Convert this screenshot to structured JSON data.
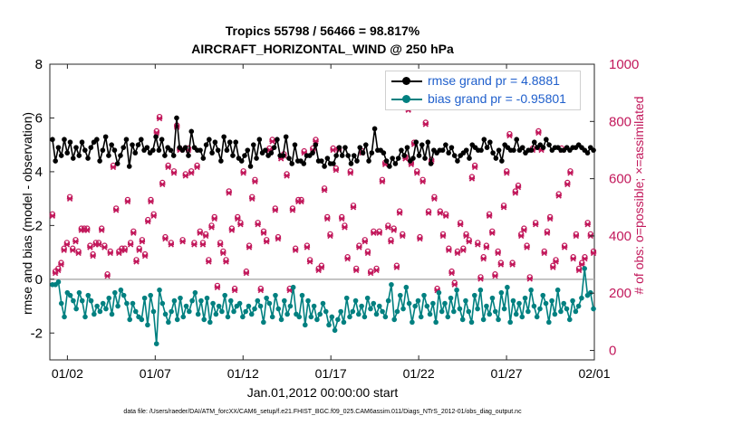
{
  "chart_data": {
    "type": "line",
    "title_line1": "Tropics 55798 / 56466 = 98.817%",
    "title_line2": "AIRCRAFT_HORIZONTAL_WIND @ 250 hPa",
    "xlabel": "Jan.01,2012 00:00:00 start",
    "ylabel_left": "rmse and bias (model - observation)",
    "ylabel_right": "# of obs: o=possible; ×=assimilated",
    "footer": "data file: /Users/raeder/DAI/ATM_forcXX/CAM6_setup/f.e21.FHIST_BGC.f09_025.CAM6assim.011/Diags_NTrS_2012-01/obs_diag_output.nc",
    "x_ticks": [
      "01/02",
      "01/07",
      "01/12",
      "01/17",
      "01/22",
      "01/27",
      "02/01"
    ],
    "x_tick_days": [
      1,
      6,
      11,
      16,
      21,
      26,
      31
    ],
    "xlim_days": [
      0,
      31
    ],
    "y_left_lim": [
      -3,
      8
    ],
    "y_left_ticks": [
      "-2",
      "0",
      "2",
      "4",
      "6",
      "8"
    ],
    "y_right_lim": [
      -33,
      1000
    ],
    "y_right_ticks": [
      "0",
      "200",
      "400",
      "600",
      "800",
      "1000"
    ],
    "legend_position": "top-right",
    "colors": {
      "rmse": "#000000",
      "bias": "#008080",
      "obs": "#c2185b",
      "legend_text": "#1f5fcc",
      "zero_line": "#b0b0b0"
    },
    "series": [
      {
        "name": "rmse grand pr = 4.8881",
        "values": [
          5.2,
          4.4,
          4.9,
          4.6,
          5.2,
          4.7,
          5.1,
          4.5,
          4.9,
          4.6,
          5.1,
          4.8,
          4.5,
          4.9,
          5.1,
          5.2,
          4.4,
          4.8,
          5.3,
          4.6,
          5.0,
          4.8,
          4.3,
          4.6,
          4.9,
          5.2,
          4.2,
          5.0,
          4.7,
          5.0,
          5.2,
          4.8,
          4.9,
          4.7,
          4.8,
          5.3,
          4.8,
          5.2,
          4.6,
          4.9,
          4.8,
          4.6,
          6.0,
          4.9,
          4.8,
          4.9,
          4.6,
          5.5,
          4.9,
          4.8,
          4.8,
          4.5,
          5.0,
          5.2,
          4.7,
          5.1,
          4.8,
          4.4,
          5.3,
          4.8,
          5.1,
          4.6,
          5.1,
          4.5,
          4.4,
          4.6,
          4.8,
          4.2,
          5.0,
          4.5,
          5.2,
          4.7,
          4.8,
          4.6,
          4.7,
          4.9,
          5.2,
          4.6,
          4.6,
          5.3,
          4.5,
          4.3,
          5.0,
          4.4,
          4.4,
          4.3,
          4.6,
          4.6,
          4.7,
          5.0,
          4.4,
          4.4,
          4.2,
          4.5,
          4.3,
          4.3,
          4.6,
          4.9,
          4.6,
          4.9,
          4.6,
          4.3,
          4.6,
          4.4,
          4.9,
          4.7,
          5.0,
          4.4,
          4.7,
          5.6,
          4.8,
          4.8,
          4.7,
          4.4,
          4.2,
          4.5,
          4.3,
          4.5,
          4.8,
          4.6,
          4.9,
          4.4,
          4.5,
          5.1,
          4.6,
          5.0,
          4.5,
          5.1,
          4.3,
          4.8,
          4.7,
          4.8,
          4.8,
          5.0,
          4.7,
          4.9,
          4.6,
          4.4,
          4.6,
          4.7,
          4.8,
          4.5,
          5.0,
          4.9,
          4.8,
          4.8,
          5.2,
          4.9,
          5.1,
          4.7,
          4.5,
          4.8,
          4.4,
          5.0,
          4.9,
          4.8,
          4.8,
          5.2,
          4.8,
          4.9,
          4.7,
          4.8,
          4.8,
          5.1,
          4.9,
          5.0,
          4.9,
          5.2,
          5.0,
          4.8,
          4.9,
          4.9,
          4.8,
          4.8,
          4.9,
          4.8,
          4.9,
          4.9,
          5.0,
          4.9,
          4.8,
          4.7,
          4.9,
          4.8
        ]
      },
      {
        "name": "bias grand pr = -0.95801",
        "values": [
          -0.2,
          -0.2,
          -0.1,
          -0.9,
          -1.4,
          -0.5,
          -0.6,
          -0.8,
          -1.1,
          -0.5,
          -0.8,
          -1.4,
          -0.6,
          -0.8,
          -1.3,
          -1.0,
          -1.2,
          -0.9,
          -1.1,
          -0.7,
          -1.3,
          -0.5,
          -1.0,
          -0.4,
          -0.6,
          -0.9,
          -1.5,
          -0.9,
          -1.2,
          -1.4,
          -1.5,
          -0.7,
          -1.7,
          -0.6,
          -1.2,
          -2.4,
          -0.4,
          -0.9,
          -1.3,
          -1.6,
          -1.2,
          -0.8,
          -1.5,
          -0.7,
          -1.4,
          -1.0,
          -1.2,
          -0.8,
          -0.5,
          -1.3,
          -0.8,
          -1.5,
          -0.7,
          -1.6,
          -0.9,
          -1.3,
          -1.0,
          -1.2,
          -0.6,
          -1.4,
          -0.8,
          -1.2,
          -1.0,
          -0.9,
          -1.4,
          -1.2,
          -1.0,
          -1.3,
          -1.1,
          -0.8,
          -1.0,
          -1.6,
          -0.7,
          -0.9,
          -1.4,
          -0.6,
          -1.1,
          -1.5,
          -0.8,
          -1.3,
          -1.0,
          -0.3,
          -1.3,
          -1.4,
          -0.6,
          -1.7,
          -0.8,
          -1.4,
          -1.0,
          -1.5,
          -1.3,
          -0.9,
          -1.2,
          -1.7,
          -1.4,
          -1.9,
          -1.5,
          -1.2,
          -1.6,
          -0.7,
          -1.4,
          -1.2,
          -0.8,
          -1.3,
          -1.0,
          -1.4,
          -0.7,
          -1.1,
          -0.9,
          -1.3,
          -1.0,
          -1.2,
          -1.4,
          -0.8,
          -0.2,
          -1.5,
          -1.2,
          -0.6,
          -1.1,
          -0.3,
          -0.9,
          -1.6,
          -1.0,
          -0.8,
          -1.4,
          -0.6,
          -1.0,
          -1.3,
          -0.9,
          -1.6,
          -0.5,
          -1.2,
          -0.9,
          -1.4,
          -0.7,
          -1.2,
          -0.4,
          -1.1,
          -1.5,
          -0.8,
          -1.2,
          -1.6,
          -0.6,
          -1.1,
          -0.4,
          -1.5,
          -1.0,
          -1.3,
          -0.7,
          -1.2,
          -1.5,
          -0.5,
          -1.1,
          -0.3,
          -1.6,
          -0.8,
          -1.3,
          -0.9,
          -1.4,
          -0.7,
          -1.2,
          -0.4,
          -1.0,
          -1.4,
          -1.1,
          -0.6,
          -0.9,
          -1.6,
          -0.8,
          -1.3,
          -0.4,
          -1.2,
          -0.9,
          -1.1,
          -1.5,
          -0.8,
          -1.2,
          -1.0,
          -0.7,
          0.4,
          -0.6,
          -0.5,
          -1.1
        ]
      }
    ],
    "obs_possible_values": [
      470,
      270,
      280,
      300,
      350,
      370,
      530,
      350,
      380,
      340,
      420,
      420,
      420,
      360,
      330,
      370,
      370,
      420,
      360,
      260,
      340,
      640,
      490,
      340,
      350,
      350,
      520,
      370,
      410,
      310,
      350,
      380,
      330,
      450,
      520,
      470,
      760,
      810,
      580,
      390,
      640,
      370,
      620,
      780,
      700,
      380,
      610,
      700,
      620,
      370,
      640,
      410,
      370,
      400,
      310,
      430,
      460,
      220,
      370,
      340,
      310,
      550,
      420,
      210,
      460,
      440,
      620,
      270,
      360,
      530,
      590,
      440,
      210,
      410,
      380,
      700,
      730,
      490,
      390,
      670,
      680,
      610,
      210,
      490,
      350,
      520,
      520,
      690,
      360,
      310,
      700,
      730,
      280,
      290,
      560,
      460,
      400,
      700,
      630,
      700,
      460,
      430,
      320,
      620,
      500,
      280,
      360,
      690,
      380,
      340,
      270,
      410,
      280,
      410,
      590,
      650,
      430,
      380,
      420,
      290,
      480,
      400,
      670,
      840,
      650,
      720,
      620,
      390,
      590,
      790,
      480,
      660,
      530,
      210,
      480,
      400,
      470,
      350,
      270,
      230,
      340,
      440,
      350,
      400,
      380,
      600,
      640,
      370,
      250,
      320,
      360,
      470,
      410,
      260,
      340,
      300,
      500,
      620,
      750,
      300,
      550,
      570,
      400,
      420,
      360,
      250,
      700,
      440,
      760,
      700,
      340,
      410,
      460,
      290,
      310,
      540,
      700,
      360,
      580,
      620,
      320,
      400,
      280,
      300,
      320,
      440,
      400,
      340
    ]
  }
}
